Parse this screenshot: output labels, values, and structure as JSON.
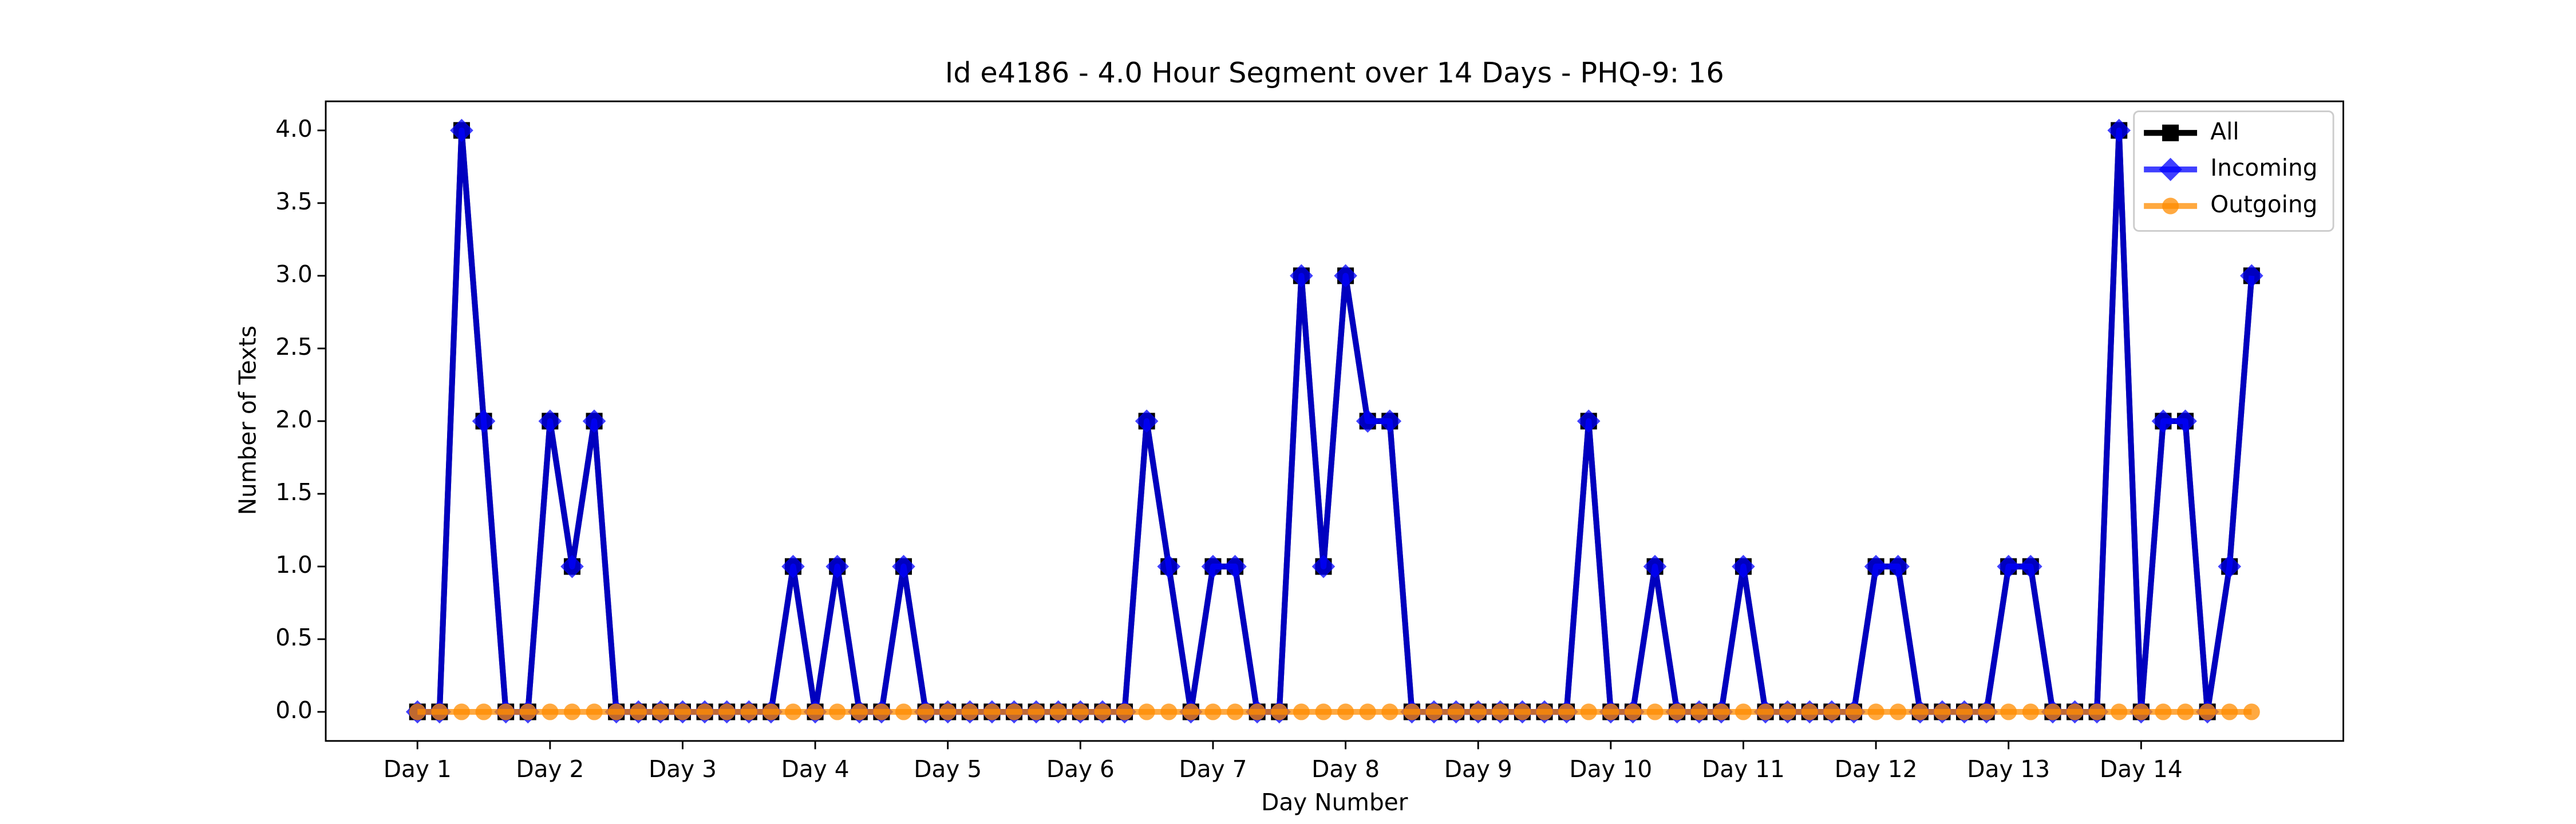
{
  "chart_data": {
    "type": "line",
    "title": "Id e4186 - 4.0 Hour Segment over 14 Days - PHQ-9: 16",
    "xlabel": "Day Number",
    "ylabel": "Number of Texts",
    "x": [
      0,
      1,
      2,
      3,
      4,
      5,
      6,
      7,
      8,
      9,
      10,
      11,
      12,
      13,
      14,
      15,
      16,
      17,
      18,
      19,
      20,
      21,
      22,
      23,
      24,
      25,
      26,
      27,
      28,
      29,
      30,
      31,
      32,
      33,
      34,
      35,
      36,
      37,
      38,
      39,
      40,
      41,
      42,
      43,
      44,
      45,
      46,
      47,
      48,
      49,
      50,
      51,
      52,
      53,
      54,
      55,
      56,
      57,
      58,
      59,
      60,
      61,
      62,
      63,
      64,
      65,
      66,
      67,
      68,
      69,
      70,
      71,
      72,
      73,
      74,
      75,
      76,
      77,
      78,
      79,
      80,
      81,
      82,
      83
    ],
    "series": [
      {
        "name": "All",
        "color": "#000000",
        "marker": "square",
        "values": [
          0,
          0,
          4,
          2,
          0,
          0,
          2,
          1,
          2,
          0,
          0,
          0,
          0,
          0,
          0,
          0,
          0,
          1,
          0,
          1,
          0,
          0,
          1,
          0,
          0,
          0,
          0,
          0,
          0,
          0,
          0,
          0,
          0,
          2,
          1,
          0,
          1,
          1,
          0,
          0,
          3,
          1,
          3,
          2,
          2,
          0,
          0,
          0,
          0,
          0,
          0,
          0,
          0,
          2,
          0,
          0,
          1,
          0,
          0,
          0,
          1,
          0,
          0,
          0,
          0,
          0,
          1,
          1,
          0,
          0,
          0,
          0,
          1,
          1,
          0,
          0,
          0,
          4,
          0,
          2,
          2,
          0,
          1,
          3
        ]
      },
      {
        "name": "Incoming",
        "color": "#0000ff",
        "marker": "diamond",
        "values": [
          0,
          0,
          4,
          2,
          0,
          0,
          2,
          1,
          2,
          0,
          0,
          0,
          0,
          0,
          0,
          0,
          0,
          1,
          0,
          1,
          0,
          0,
          1,
          0,
          0,
          0,
          0,
          0,
          0,
          0,
          0,
          0,
          0,
          2,
          1,
          0,
          1,
          1,
          0,
          0,
          3,
          1,
          3,
          2,
          2,
          0,
          0,
          0,
          0,
          0,
          0,
          0,
          0,
          2,
          0,
          0,
          1,
          0,
          0,
          0,
          1,
          0,
          0,
          0,
          0,
          0,
          1,
          1,
          0,
          0,
          0,
          0,
          1,
          1,
          0,
          0,
          0,
          4,
          0,
          2,
          2,
          0,
          1,
          3
        ]
      },
      {
        "name": "Outgoing",
        "color": "#ff8c00",
        "marker": "circle",
        "values": [
          0,
          0,
          0,
          0,
          0,
          0,
          0,
          0,
          0,
          0,
          0,
          0,
          0,
          0,
          0,
          0,
          0,
          0,
          0,
          0,
          0,
          0,
          0,
          0,
          0,
          0,
          0,
          0,
          0,
          0,
          0,
          0,
          0,
          0,
          0,
          0,
          0,
          0,
          0,
          0,
          0,
          0,
          0,
          0,
          0,
          0,
          0,
          0,
          0,
          0,
          0,
          0,
          0,
          0,
          0,
          0,
          0,
          0,
          0,
          0,
          0,
          0,
          0,
          0,
          0,
          0,
          0,
          0,
          0,
          0,
          0,
          0,
          0,
          0,
          0,
          0,
          0,
          0,
          0,
          0,
          0,
          0,
          0,
          0
        ]
      }
    ],
    "xlim": [
      -4.15,
      87.15
    ],
    "xticks": [
      {
        "value": 0,
        "label": "Day 1"
      },
      {
        "value": 6,
        "label": "Day 2"
      },
      {
        "value": 12,
        "label": "Day 3"
      },
      {
        "value": 18,
        "label": "Day 4"
      },
      {
        "value": 24,
        "label": "Day 5"
      },
      {
        "value": 30,
        "label": "Day 6"
      },
      {
        "value": 36,
        "label": "Day 7"
      },
      {
        "value": 42,
        "label": "Day 8"
      },
      {
        "value": 48,
        "label": "Day 9"
      },
      {
        "value": 54,
        "label": "Day 10"
      },
      {
        "value": 60,
        "label": "Day 11"
      },
      {
        "value": 66,
        "label": "Day 12"
      },
      {
        "value": 72,
        "label": "Day 13"
      },
      {
        "value": 78,
        "label": "Day 14"
      }
    ],
    "ylim": [
      -0.2,
      4.2
    ],
    "yticks": [
      {
        "value": 0,
        "label": "0.0"
      },
      {
        "value": 0.5,
        "label": "0.5"
      },
      {
        "value": 1,
        "label": "1.0"
      },
      {
        "value": 1.5,
        "label": "1.5"
      },
      {
        "value": 2,
        "label": "2.0"
      },
      {
        "value": 2.5,
        "label": "2.5"
      },
      {
        "value": 3,
        "label": "3.0"
      },
      {
        "value": 3.5,
        "label": "3.5"
      },
      {
        "value": 4,
        "label": "4.0"
      }
    ],
    "grid": false,
    "legend": "upper right"
  }
}
